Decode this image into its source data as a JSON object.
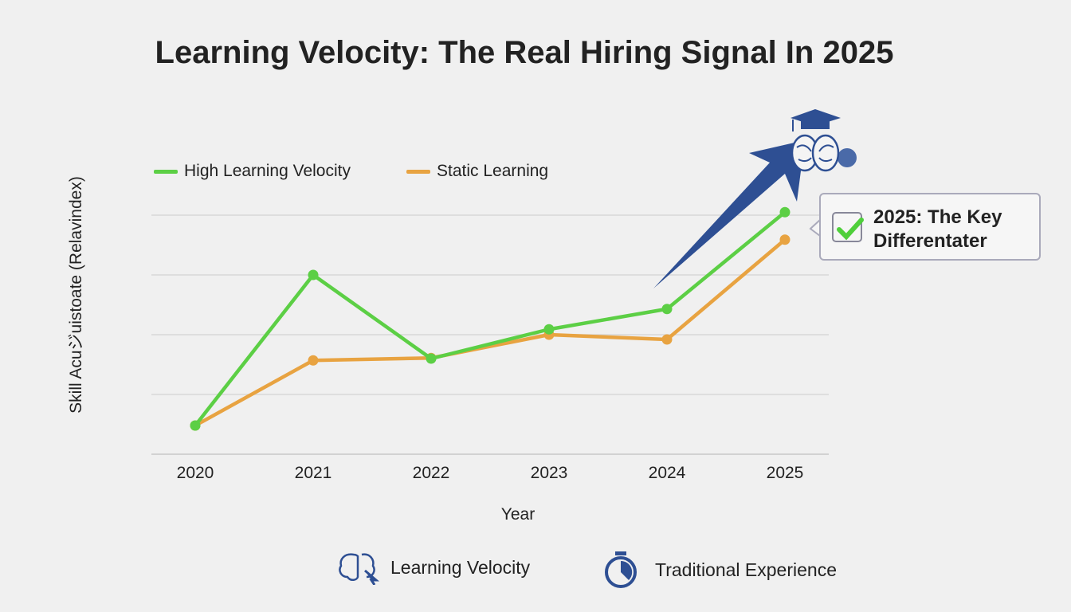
{
  "chart_data": {
    "type": "line",
    "title": "Learning Velocity: The Real Hiring Signal In 2025",
    "xlabel": "Year",
    "ylabel": "Skill Acuジuistoate (Relavindex)",
    "categories": [
      "2020",
      "2021",
      "2022",
      "2023",
      "2024",
      "2025"
    ],
    "ylim": [
      0,
      4.2
    ],
    "grid": true,
    "legend_position": "top-left",
    "series": [
      {
        "name": "High Learning Velocity",
        "color": "#5ccf45",
        "values": [
          0.48,
          3.0,
          1.6,
          2.09,
          2.43,
          4.05
        ]
      },
      {
        "name": "Static Learning",
        "color": "#e8a341",
        "values": [
          0.48,
          1.57,
          1.61,
          2.0,
          1.92,
          3.59
        ]
      }
    ],
    "annotation": {
      "line1": "2025: The Key",
      "line2": "Differentater",
      "icon": "check-icon"
    }
  },
  "colors": {
    "accent": "#2e4f93"
  },
  "bottom_legend": [
    {
      "icon": "brain-cursor-icon",
      "label": "Learning Velocity"
    },
    {
      "icon": "stopwatch-icon",
      "label": "Traditional Experience"
    }
  ]
}
